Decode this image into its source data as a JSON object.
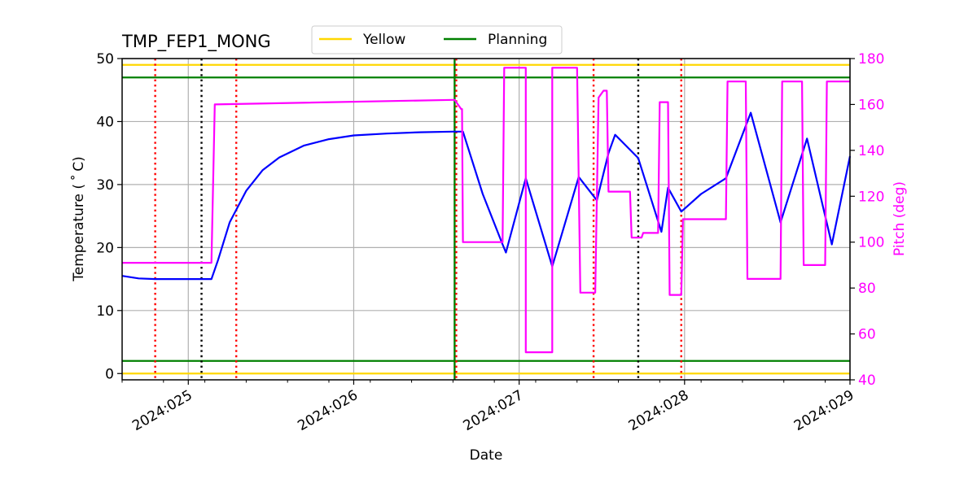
{
  "chart_data": {
    "type": "line",
    "title": "TMP_FEP1_MONG",
    "xlabel": "Date",
    "ylabel": "Temperature ($^\\circ$C)",
    "ylabel_display": "Temperature ( ˚ C)",
    "y2label": "Pitch (deg)",
    "xlim": [
      24.6,
      29.0
    ],
    "ylim": [
      -1,
      50
    ],
    "y2lim": [
      40,
      180
    ],
    "x_tick_values": [
      25,
      26,
      27,
      28,
      29
    ],
    "x_tick_labels": [
      "2024:025",
      "2024:026",
      "2024:027",
      "2024:028",
      "2024:029"
    ],
    "y_tick_values": [
      0,
      10,
      20,
      30,
      40,
      50
    ],
    "y_tick_labels": [
      "0",
      "10",
      "20",
      "30",
      "40",
      "50"
    ],
    "y2_tick_values": [
      40,
      60,
      80,
      100,
      120,
      140,
      160,
      180
    ],
    "y2_tick_labels": [
      "40",
      "60",
      "80",
      "100",
      "120",
      "140",
      "160",
      "180"
    ],
    "grid": true,
    "legend": {
      "placement": "top-center",
      "entries": [
        {
          "name": "Yellow",
          "color": "#ffd700"
        },
        {
          "name": "Planning",
          "color": "#008000"
        }
      ]
    },
    "limit_lines": [
      {
        "name": "Yellow",
        "value": 49,
        "color": "#ffd700"
      },
      {
        "name": "Yellow",
        "value": 0,
        "color": "#ffd700"
      },
      {
        "name": "Planning",
        "value": 47,
        "color": "#008000"
      },
      {
        "name": "Planning",
        "value": 2,
        "color": "#008000"
      }
    ],
    "vertical_lines": [
      {
        "x": 24.8,
        "color": "#ff0000",
        "style": "dotted"
      },
      {
        "x": 25.08,
        "color": "#000000",
        "style": "dotted"
      },
      {
        "x": 25.29,
        "color": "#ff0000",
        "style": "dotted"
      },
      {
        "x": 26.61,
        "color": "#008000",
        "style": "solid"
      },
      {
        "x": 26.62,
        "color": "#ff0000",
        "style": "dotted"
      },
      {
        "x": 27.45,
        "color": "#ff0000",
        "style": "dotted"
      },
      {
        "x": 27.72,
        "color": "#000000",
        "style": "dotted"
      },
      {
        "x": 27.98,
        "color": "#ff0000",
        "style": "dotted"
      }
    ],
    "series": [
      {
        "name": "temperature",
        "axis": "left",
        "color": "#0000ff",
        "x": [
          24.6,
          24.7,
          24.8,
          24.9,
          25.0,
          25.14,
          25.18,
          25.25,
          25.35,
          25.45,
          25.55,
          25.7,
          25.85,
          26.0,
          26.2,
          26.4,
          26.6,
          26.66,
          26.78,
          26.9,
          26.92,
          27.04,
          27.2,
          27.36,
          27.47,
          27.54,
          27.58,
          27.66,
          27.72,
          27.86,
          27.9,
          27.98,
          28.1,
          28.25,
          28.4,
          28.58,
          28.74,
          28.89,
          29.0
        ],
        "y": [
          15.5,
          15.1,
          15.0,
          15.0,
          15.0,
          15.0,
          18.0,
          24.0,
          29.0,
          32.3,
          34.3,
          36.2,
          37.2,
          37.8,
          38.1,
          38.3,
          38.4,
          38.4,
          28.5,
          20.5,
          19.2,
          31.0,
          17.0,
          31.2,
          27.5,
          35.0,
          37.9,
          35.8,
          34.2,
          22.5,
          29.5,
          25.7,
          28.5,
          31.0,
          41.4,
          24.0,
          37.3,
          20.5,
          34.5
        ]
      },
      {
        "name": "pitch",
        "axis": "right",
        "color": "#ff00ff",
        "x": [
          24.6,
          25.13,
          25.14,
          25.16,
          26.6,
          26.61,
          26.65,
          26.655,
          26.66,
          26.9,
          26.9,
          26.91,
          27.03,
          27.04,
          27.04,
          27.05,
          27.19,
          27.2,
          27.2,
          27.21,
          27.34,
          27.35,
          27.37,
          27.38,
          27.43,
          27.44,
          27.46,
          27.48,
          27.51,
          27.52,
          27.53,
          27.54,
          27.66,
          27.67,
          27.68,
          27.74,
          27.75,
          27.84,
          27.85,
          27.88,
          27.9,
          27.91,
          27.97,
          27.98,
          27.99,
          28.25,
          28.26,
          28.37,
          28.38,
          28.58,
          28.59,
          28.71,
          28.72,
          28.85,
          28.86,
          29.0
        ],
        "y": [
          91,
          91,
          91,
          160,
          162,
          162,
          158,
          158,
          100,
          100,
          100,
          176,
          176,
          176,
          52,
          52,
          52,
          52,
          176,
          176,
          176,
          176,
          78,
          78,
          78,
          78,
          78,
          163,
          166,
          166,
          166,
          122,
          122,
          122,
          102,
          102,
          104,
          104,
          161,
          161,
          161,
          77,
          77,
          77,
          110,
          110,
          170,
          170,
          84,
          84,
          170,
          170,
          90,
          90,
          170,
          170
        ]
      }
    ]
  }
}
